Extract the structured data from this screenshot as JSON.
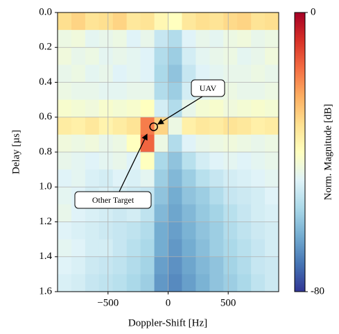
{
  "chart_data": {
    "type": "heatmap",
    "xlabel": "Doppler-Shift [Hz]",
    "ylabel": "Delay [µs]",
    "colorbar_label": "Norm. Magnitude [dB]",
    "xlim": [
      -920,
      920
    ],
    "ylim": [
      1.6,
      0
    ],
    "xticks": [
      {
        "value": -500,
        "label": "−500"
      },
      0,
      500
    ],
    "yticks": [
      {
        "value": 0,
        "label": "0.0"
      },
      0.2,
      0.4,
      0.6,
      0.8,
      {
        "value": 1,
        "label": "1.0"
      },
      1.2,
      1.4,
      1.6
    ],
    "grid": true,
    "clim": [
      -80,
      0
    ],
    "cticks": [
      0,
      -80
    ],
    "colormap": [
      "#313695",
      "#4575b4",
      "#74add1",
      "#abd9e9",
      "#e0f3f8",
      "#ffffbf",
      "#fee090",
      "#fdae61",
      "#f46d43",
      "#d73027",
      "#a50026"
    ],
    "x_bins": [
      -920,
      -805,
      -690,
      -575,
      -460,
      -345,
      -230,
      -115,
      0,
      115,
      230,
      345,
      460,
      575,
      690,
      805,
      920
    ],
    "y_bins": [
      0,
      0.1,
      0.2,
      0.3,
      0.4,
      0.5,
      0.6,
      0.7,
      0.8,
      0.9,
      1.0,
      1.1,
      1.2,
      1.3,
      1.4,
      1.5,
      1.6
    ],
    "values": [
      [
        -32,
        -30,
        -33,
        -32,
        -30,
        -34,
        -33,
        -38,
        -40,
        -34,
        -32,
        -33,
        -31,
        -30,
        -33,
        -32
      ],
      [
        -45,
        -44,
        -47,
        -46,
        -45,
        -48,
        -46,
        -52,
        -55,
        -48,
        -46,
        -47,
        -45,
        -44,
        -46,
        -45
      ],
      [
        -44,
        -46,
        -45,
        -47,
        -46,
        -47,
        -48,
        -55,
        -58,
        -50,
        -47,
        -46,
        -45,
        -47,
        -46,
        -44
      ],
      [
        -46,
        -45,
        -47,
        -46,
        -48,
        -47,
        -48,
        -56,
        -60,
        -52,
        -48,
        -47,
        -46,
        -46,
        -45,
        -46
      ],
      [
        -45,
        -46,
        -46,
        -47,
        -47,
        -46,
        -46,
        -55,
        -58,
        -50,
        -47,
        -46,
        -45,
        -46,
        -46,
        -45
      ],
      [
        -42,
        -43,
        -44,
        -42,
        -43,
        -42,
        -40,
        -50,
        -55,
        -46,
        -43,
        -42,
        -44,
        -43,
        -42,
        -43
      ],
      [
        -35,
        -36,
        -34,
        -37,
        -35,
        -33,
        -18,
        -30,
        -45,
        -36,
        -34,
        -35,
        -33,
        -34,
        -36,
        -35
      ],
      [
        -44,
        -45,
        -44,
        -46,
        -45,
        -40,
        -15,
        -45,
        -55,
        -48,
        -46,
        -45,
        -44,
        -45,
        -46,
        -45
      ],
      [
        -46,
        -47,
        -48,
        -47,
        -46,
        -48,
        -40,
        -56,
        -60,
        -54,
        -50,
        -48,
        -47,
        -48,
        -47,
        -46
      ],
      [
        -48,
        -47,
        -49,
        -50,
        -48,
        -49,
        -47,
        -58,
        -62,
        -58,
        -54,
        -52,
        -50,
        -49,
        -48,
        -47
      ],
      [
        -47,
        -48,
        -50,
        -49,
        -50,
        -51,
        -52,
        -60,
        -64,
        -60,
        -58,
        -55,
        -52,
        -51,
        -50,
        -48
      ],
      [
        -46,
        -48,
        -49,
        -50,
        -51,
        -50,
        -53,
        -62,
        -65,
        -62,
        -59,
        -57,
        -54,
        -52,
        -50,
        -49
      ],
      [
        -48,
        -49,
        -50,
        -51,
        -52,
        -53,
        -55,
        -64,
        -66,
        -63,
        -60,
        -58,
        -55,
        -53,
        -51,
        -50
      ],
      [
        -47,
        -48,
        -50,
        -50,
        -52,
        -54,
        -56,
        -64,
        -67,
        -64,
        -61,
        -58,
        -56,
        -54,
        -52,
        -50
      ],
      [
        -48,
        -49,
        -51,
        -52,
        -53,
        -55,
        -57,
        -66,
        -68,
        -65,
        -62,
        -60,
        -57,
        -55,
        -52,
        -51
      ],
      [
        -49,
        -50,
        -52,
        -53,
        -54,
        -56,
        -58,
        -67,
        -69,
        -66,
        -63,
        -60,
        -58,
        -56,
        -53,
        -51
      ]
    ],
    "annotations": [
      {
        "text": "UAV",
        "xy": [
          -120,
          0.655
        ]
      },
      {
        "text": "Other Target",
        "xy": [
          -170,
          0.69
        ]
      }
    ]
  }
}
